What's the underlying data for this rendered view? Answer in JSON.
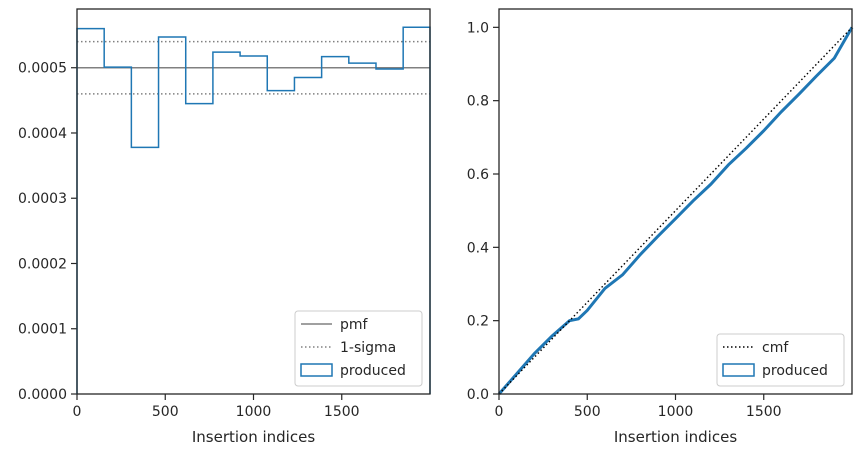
{
  "chart_data": [
    {
      "type": "step",
      "xlabel": "Insertion indices",
      "ylabel": "",
      "xlim": [
        0,
        2000
      ],
      "ylim": [
        0,
        0.00059
      ],
      "xticks": [
        0,
        500,
        1000,
        1500
      ],
      "xtick_labels": [
        "0",
        "500",
        "1000",
        "1500"
      ],
      "yticks": [
        0,
        0.0001,
        0.0002,
        0.0003,
        0.0004,
        0.0005
      ],
      "ytick_labels": [
        "0.0000",
        "0.0001",
        "0.0002",
        "0.0003",
        "0.0004",
        "0.0005"
      ],
      "pmf": 0.0005,
      "sigma_band": [
        0.00046,
        0.00054
      ],
      "produced": {
        "edges": [
          0,
          154,
          308,
          462,
          616,
          770,
          924,
          1078,
          1232,
          1386,
          1540,
          1694,
          1848,
          2000
        ],
        "values": [
          0.00056,
          0.000501,
          0.000378,
          0.000547,
          0.000445,
          0.000524,
          0.000518,
          0.000465,
          0.000485,
          0.000517,
          0.000507,
          0.000498,
          0.000562
        ]
      },
      "legend": {
        "position": "lower right",
        "entries": [
          {
            "label": "pmf",
            "style": "solid",
            "color": "#808080"
          },
          {
            "label": "1-sigma",
            "style": "dotted",
            "color": "#808080"
          },
          {
            "label": "produced",
            "style": "patch",
            "color": "#1f77b4"
          }
        ]
      }
    },
    {
      "type": "line",
      "xlabel": "Insertion indices",
      "ylabel": "",
      "xlim": [
        0,
        2000
      ],
      "ylim": [
        0,
        1.05
      ],
      "xticks": [
        0,
        500,
        1000,
        1500
      ],
      "xtick_labels": [
        "0",
        "500",
        "1000",
        "1500"
      ],
      "yticks": [
        0,
        0.2,
        0.4,
        0.6,
        0.8,
        1.0
      ],
      "ytick_labels": [
        "0.0",
        "0.2",
        "0.4",
        "0.6",
        "0.8",
        "1.0"
      ],
      "cmf": {
        "x": [
          0,
          2000
        ],
        "y": [
          0,
          1.0
        ]
      },
      "produced": {
        "x": [
          0,
          100,
          200,
          300,
          400,
          450,
          500,
          600,
          700,
          800,
          900,
          1000,
          1100,
          1200,
          1300,
          1400,
          1500,
          1600,
          1700,
          1800,
          1900,
          2000
        ],
        "y": [
          0,
          0.055,
          0.11,
          0.158,
          0.2,
          0.205,
          0.228,
          0.288,
          0.325,
          0.38,
          0.43,
          0.478,
          0.527,
          0.572,
          0.625,
          0.67,
          0.718,
          0.77,
          0.818,
          0.868,
          0.916,
          1.0
        ]
      },
      "legend": {
        "position": "lower right",
        "entries": [
          {
            "label": "cmf",
            "style": "dotted",
            "color": "#000000"
          },
          {
            "label": "produced",
            "style": "patch",
            "color": "#1f77b4"
          }
        ]
      }
    }
  ]
}
